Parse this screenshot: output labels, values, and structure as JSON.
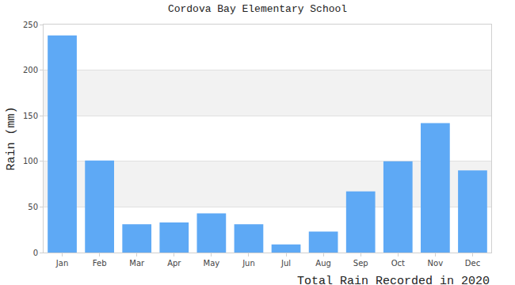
{
  "chart_data": {
    "type": "bar",
    "title": "Cordova Bay Elementary School",
    "xlabel": "Total Rain Recorded in 2020",
    "ylabel": "Rain (mm)",
    "categories": [
      "Jan",
      "Feb",
      "Mar",
      "Apr",
      "May",
      "Jun",
      "Jul",
      "Aug",
      "Sep",
      "Oct",
      "Nov",
      "Dec"
    ],
    "values": [
      238,
      101,
      31,
      33,
      43,
      31,
      9,
      23,
      67,
      100,
      142,
      90
    ],
    "color": "#5ea9f5",
    "ylim": [
      0,
      250
    ],
    "yticks": [
      0,
      50,
      100,
      150,
      200,
      250
    ],
    "grid": true
  }
}
